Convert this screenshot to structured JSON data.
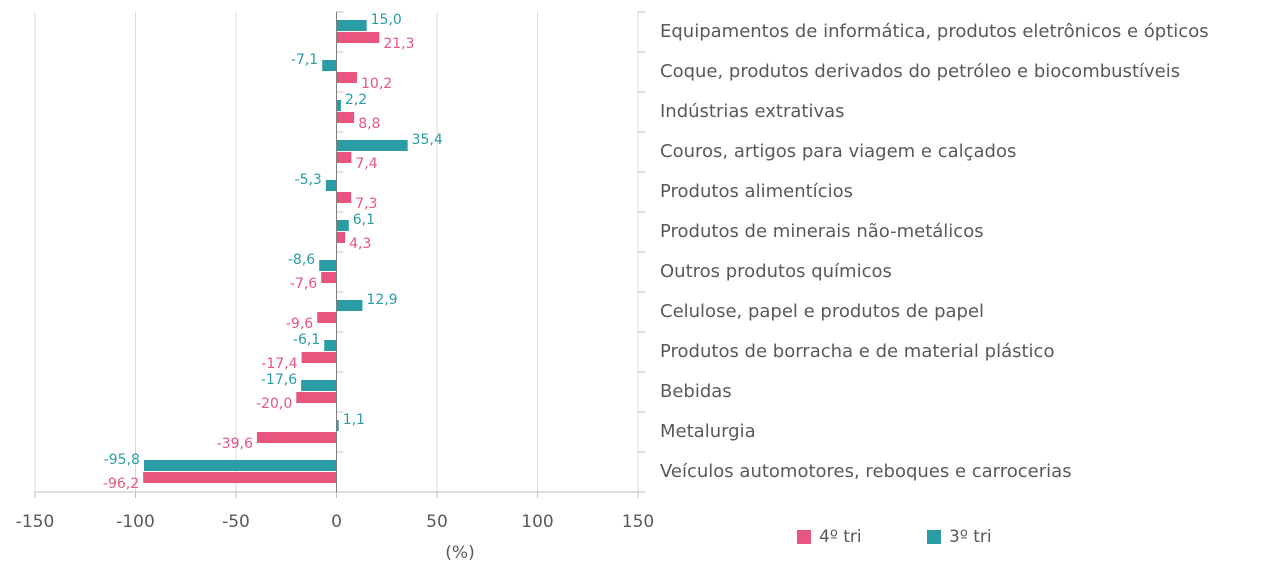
{
  "chart_data": {
    "type": "hbar",
    "categories": [
      "Equipamentos de informática, produtos eletrônicos e ópticos",
      "Coque, produtos derivados do petróleo e biocombustíveis",
      "Indústrias extrativas",
      "Couros, artigos para viagem e calçados",
      "Produtos alimentícios",
      "Produtos de minerais não-metálicos",
      "Outros produtos químicos",
      "Celulose, papel e produtos de papel",
      "Produtos de borracha e de material plástico",
      "Bebidas",
      "Metalurgia",
      "Veículos automotores, reboques e carrocerias"
    ],
    "series": [
      {
        "name": "4º tri",
        "color": "#e8557f",
        "values": [
          21.3,
          10.2,
          8.8,
          7.4,
          7.3,
          4.3,
          -7.6,
          -9.6,
          -17.4,
          -20.0,
          -39.6,
          -96.2
        ],
        "value_labels": [
          "21,3",
          "10,2",
          "8,8",
          "7,4",
          "7,3",
          "4,3",
          "-7,6",
          "-9,6",
          "-17,4",
          "-20,0",
          "-39,6",
          "-96,2"
        ]
      },
      {
        "name": "3º tri",
        "color": "#2a9ca6",
        "values": [
          15.0,
          -7.1,
          2.2,
          35.4,
          -5.3,
          6.1,
          -8.6,
          12.9,
          -6.1,
          -17.6,
          1.1,
          -95.8
        ],
        "value_labels": [
          "15,0",
          "-7,1",
          "2,2",
          "35,4",
          "-5,3",
          "6,1",
          "-8,6",
          "12,9",
          "-6,1",
          "-17,6",
          "1,1",
          "-95,8"
        ]
      }
    ],
    "xlabel": "(%)",
    "xlim": [
      -150,
      150
    ],
    "xticks": [
      -150,
      -100,
      -50,
      0,
      50,
      100,
      150
    ],
    "grid": true,
    "legend": "bottom"
  }
}
